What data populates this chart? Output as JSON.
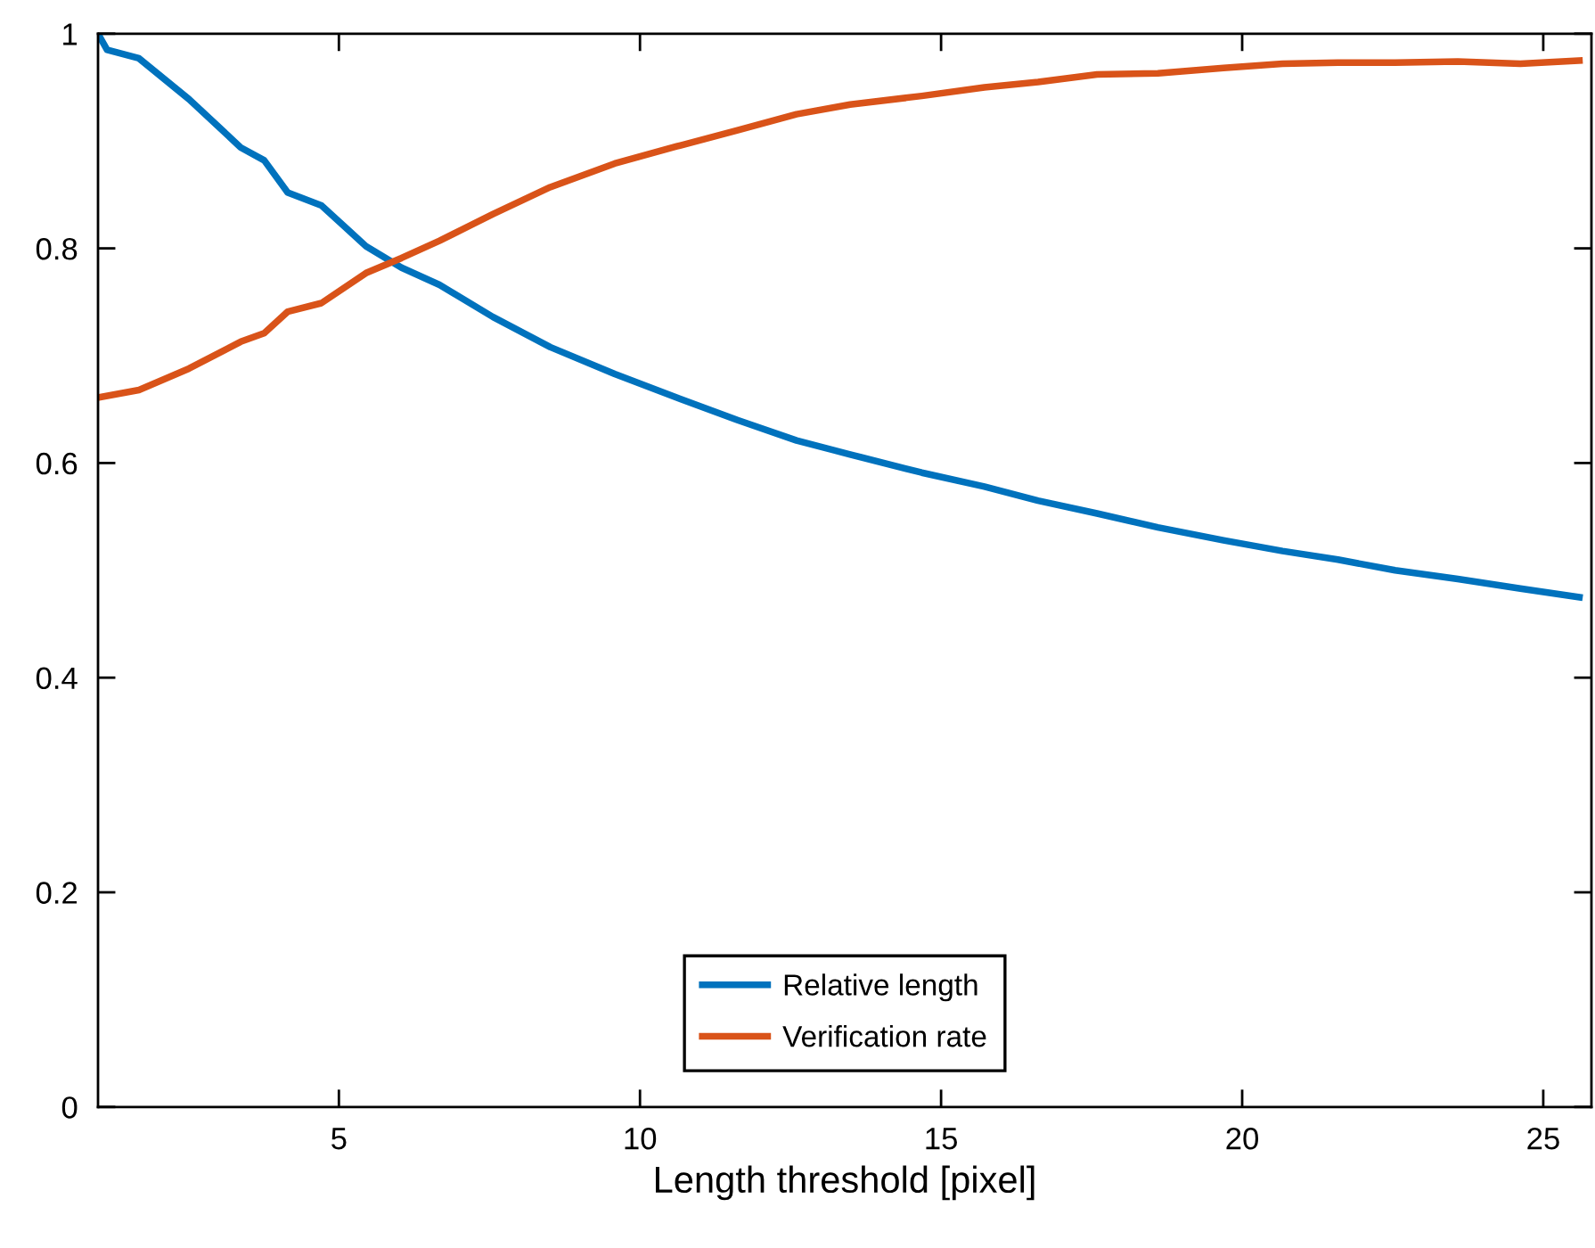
{
  "chart_data": {
    "type": "line",
    "xlabel": "Length threshold [pixel]",
    "xlim": [
      1,
      25.8
    ],
    "xticks": [
      5,
      10,
      15,
      20,
      25
    ],
    "ylim": [
      0,
      1
    ],
    "yticks": [
      0,
      0.2,
      0.4,
      0.6,
      0.8,
      1
    ],
    "grid": false,
    "legend": "bottom",
    "marker": "none",
    "line_style": "solid",
    "series": [
      {
        "name": "Relative length",
        "color": "#0072bd",
        "x": [
          1.0,
          1.15,
          1.68,
          2.51,
          3.37,
          3.76,
          4.15,
          4.71,
          5.45,
          6.04,
          6.67,
          7.56,
          8.51,
          9.58,
          10.61,
          11.62,
          12.6,
          13.49,
          14.68,
          15.72,
          16.61,
          17.59,
          18.6,
          19.69,
          20.67,
          21.59,
          22.54,
          23.58,
          24.62,
          25.6
        ],
        "values": [
          1.0,
          0.985,
          0.977,
          0.939,
          0.894,
          0.882,
          0.852,
          0.84,
          0.802,
          0.782,
          0.766,
          0.736,
          0.708,
          0.683,
          0.661,
          0.64,
          0.621,
          0.608,
          0.591,
          0.578,
          0.565,
          0.553,
          0.54,
          0.528,
          0.518,
          0.51,
          0.5,
          0.492,
          0.483,
          0.475
        ]
      },
      {
        "name": "Verification rate",
        "color": "#d95319",
        "x": [
          1.0,
          1.68,
          2.51,
          3.37,
          3.76,
          4.15,
          4.71,
          5.45,
          6.04,
          6.67,
          7.56,
          8.51,
          9.58,
          10.61,
          11.62,
          12.6,
          13.49,
          14.68,
          15.72,
          16.61,
          17.59,
          18.6,
          19.69,
          20.67,
          21.59,
          22.54,
          23.58,
          24.62,
          25.6
        ],
        "values": [
          0.661,
          0.668,
          0.688,
          0.713,
          0.721,
          0.741,
          0.749,
          0.777,
          0.791,
          0.807,
          0.832,
          0.857,
          0.879,
          0.895,
          0.91,
          0.925,
          0.934,
          0.942,
          0.95,
          0.955,
          0.962,
          0.963,
          0.968,
          0.972,
          0.973,
          0.973,
          0.974,
          0.972,
          0.975
        ]
      }
    ]
  }
}
